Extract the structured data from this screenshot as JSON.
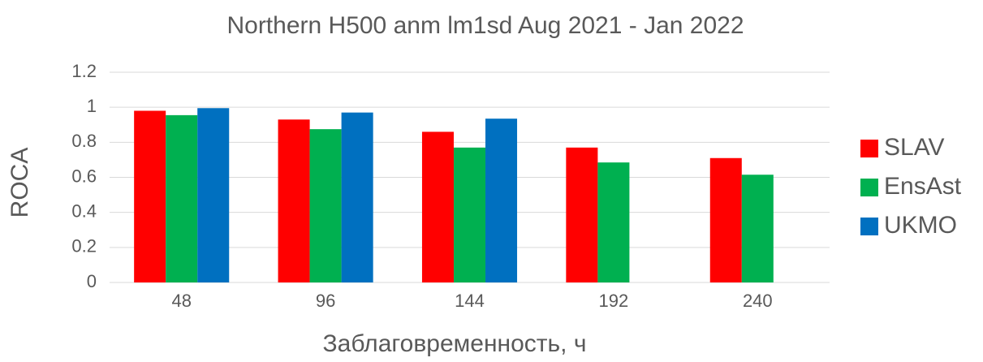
{
  "chart_data": {
    "type": "bar",
    "title": "Northern H500 anm lm1sd Aug 2021 - Jan 2022",
    "x_label": "Заблаговременность, ч",
    "y_label": "ROCA",
    "categories": [
      "48",
      "96",
      "144",
      "192",
      "240"
    ],
    "series": [
      {
        "name": "SLAV",
        "color": "#ff0000",
        "values": [
          0.98,
          0.93,
          0.86,
          0.77,
          0.71
        ]
      },
      {
        "name": "EnsAst",
        "color": "#00b050",
        "values": [
          0.955,
          0.875,
          0.77,
          0.685,
          0.615
        ]
      },
      {
        "name": "UKMO",
        "color": "#0070c0",
        "values": [
          0.995,
          0.97,
          0.935,
          null,
          null
        ]
      }
    ],
    "ylim": [
      0,
      1.2
    ],
    "yticks": [
      0,
      0.2,
      0.4,
      0.6,
      0.8,
      1,
      1.2
    ],
    "grid": true,
    "legend": "right"
  }
}
